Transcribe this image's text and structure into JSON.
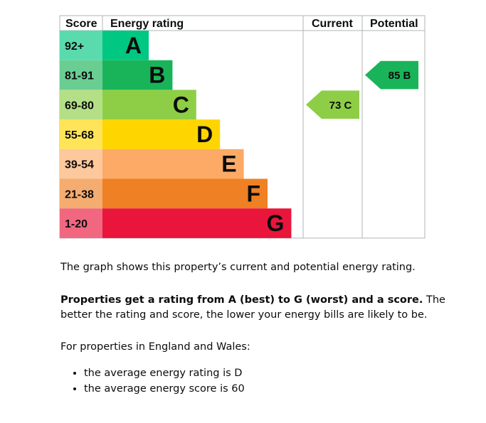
{
  "chart_data": {
    "type": "table",
    "headers": {
      "score": "Score",
      "rating": "Energy rating",
      "current": "Current",
      "potential": "Potential"
    },
    "bands": [
      {
        "range": "92+",
        "letter": "A",
        "color": "#00c781"
      },
      {
        "range": "81-91",
        "letter": "B",
        "color": "#19b459"
      },
      {
        "range": "69-80",
        "letter": "C",
        "color": "#8dce46"
      },
      {
        "range": "55-68",
        "letter": "D",
        "color": "#ffd500"
      },
      {
        "range": "39-54",
        "letter": "E",
        "color": "#fcaa65"
      },
      {
        "range": "21-38",
        "letter": "F",
        "color": "#ef8023"
      },
      {
        "range": "1-20",
        "letter": "G",
        "color": "#e9153b"
      }
    ],
    "current": {
      "score": 73,
      "band": "C",
      "label": "73 C",
      "color": "#8dce46"
    },
    "potential": {
      "score": 85,
      "band": "B",
      "label": "85 B",
      "color": "#19b459"
    }
  },
  "description": {
    "line1": "The graph shows this property’s current and potential energy rating.",
    "bold": "Properties get a rating from A (best) to G (worst) and a score.",
    "rest": " The better the rating and score, the lower your energy bills are likely to be.",
    "line3": "For properties in England and Wales:",
    "bullets": [
      "the average energy rating is D",
      "the average energy score is 60"
    ]
  }
}
